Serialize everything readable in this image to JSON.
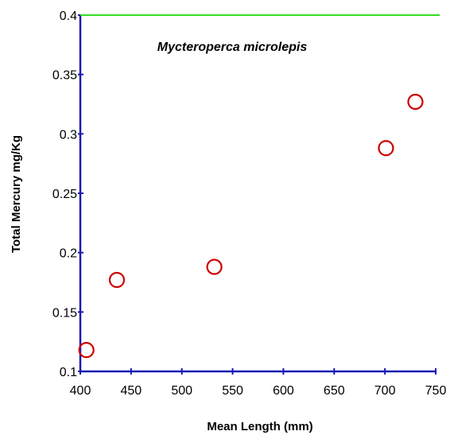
{
  "chart_data": {
    "type": "scatter",
    "title": "",
    "annotation": "Mycteroperca microlepis",
    "xlabel": "Mean Length (mm)",
    "ylabel": "Total Mercury mg/Kg",
    "xlim": [
      400,
      750
    ],
    "ylim": [
      0.1,
      0.4
    ],
    "x_ticks": [
      400,
      450,
      500,
      550,
      600,
      650,
      700,
      750
    ],
    "y_ticks": [
      0.1,
      0.15,
      0.2,
      0.25,
      0.3,
      0.35,
      0.4
    ],
    "x_tick_labels": [
      "400",
      "450",
      "500",
      "550",
      "600",
      "650",
      "700",
      "750"
    ],
    "y_tick_labels": [
      "0.1",
      "0.15",
      "0.2",
      "0.25",
      "0.3",
      "0.35",
      "0.4"
    ],
    "reference_line": {
      "y": 0.4,
      "color": "#33dd22"
    },
    "series": [
      {
        "marker": "open-circle",
        "color": "#cc0000",
        "points": [
          {
            "x": 406,
            "y": 0.118
          },
          {
            "x": 436,
            "y": 0.177
          },
          {
            "x": 532,
            "y": 0.188
          },
          {
            "x": 701,
            "y": 0.288
          },
          {
            "x": 730,
            "y": 0.327
          }
        ]
      }
    ],
    "axis_color": "#1a1ab4",
    "grid": false
  }
}
